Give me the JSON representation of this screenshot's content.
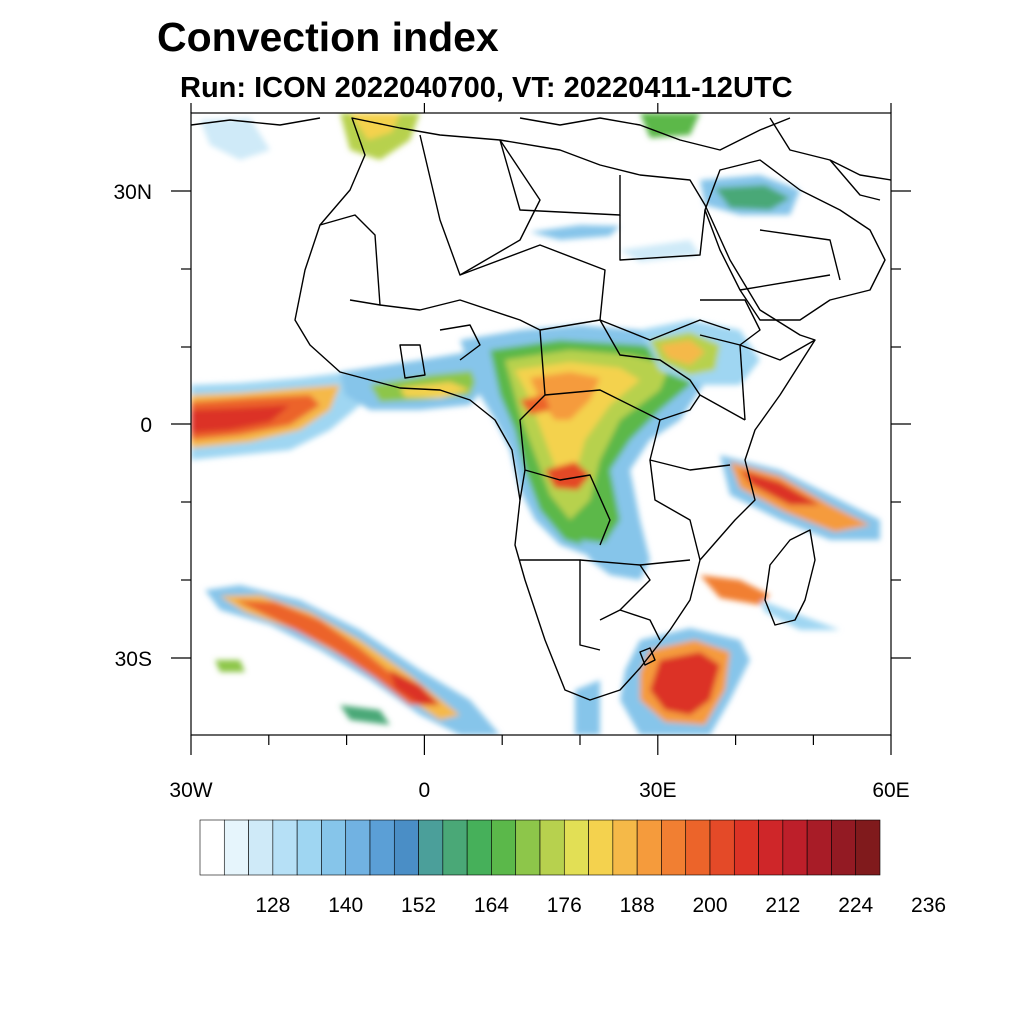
{
  "title": "Convection index",
  "subtitle": "Run: ICON 2022040700,  VT: 20220411-12UTC",
  "map": {
    "region": "Africa",
    "lon_range": [
      -30,
      60
    ],
    "lat_range": [
      -40,
      40
    ],
    "lon_tick_labels": [
      "30W",
      "0",
      "30E",
      "60E"
    ],
    "lat_tick_labels": [
      "30N",
      "0",
      "30S"
    ]
  },
  "colorbar": {
    "tick_labels": [
      "128",
      "140",
      "152",
      "164",
      "176",
      "188",
      "200",
      "212",
      "224",
      "236"
    ],
    "colors": [
      "#ffffff",
      "#e6f5fc",
      "#cfeaf8",
      "#b6e0f6",
      "#9fd6f2",
      "#86c5ea",
      "#71b2e2",
      "#5b9fd6",
      "#4a8ec6",
      "#4b9f9a",
      "#4aa877",
      "#46b05a",
      "#5bb84a",
      "#8dc64a",
      "#b7d14e",
      "#e2df55",
      "#f4d24e",
      "#f5b948",
      "#f59b3c",
      "#f17f32",
      "#ec642a",
      "#e44a28",
      "#dc3326",
      "#cf2629",
      "#bd1f2a",
      "#a81c27",
      "#931a23",
      "#801a1c"
    ]
  }
}
